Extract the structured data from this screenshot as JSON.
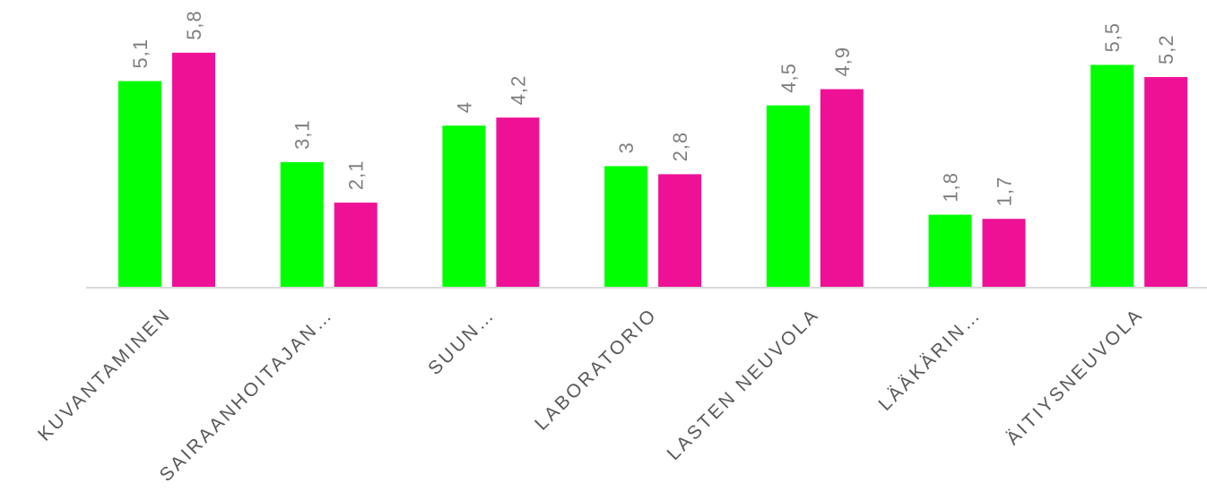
{
  "chart_data": {
    "type": "bar",
    "categories": [
      "KUVANTAMINEN",
      "SAIRAANHOITAJAN…",
      "SUUN…",
      "LABORATORIO",
      "LASTEN NEUVOLA",
      "LÄÄKÄRIN…",
      "ÄITIYSNEUVOLA"
    ],
    "series": [
      {
        "color": "#00ff00",
        "values": [
          5.1,
          3.1,
          4,
          3,
          4.5,
          1.8,
          5.5
        ],
        "labels": [
          "5,1",
          "3,1",
          "4",
          "3",
          "4,5",
          "1,8",
          "5,5"
        ]
      },
      {
        "color": "#ee1196",
        "values": [
          5.8,
          2.1,
          4.2,
          2.8,
          4.9,
          1.7,
          5.2
        ],
        "labels": [
          "5,8",
          "2,1",
          "4,2",
          "2,8",
          "4,9",
          "1,7",
          "5,2"
        ]
      }
    ],
    "ylim": [
      0,
      6
    ],
    "grid": false,
    "legend": "none",
    "title": "",
    "xlabel": "",
    "ylabel": ""
  }
}
